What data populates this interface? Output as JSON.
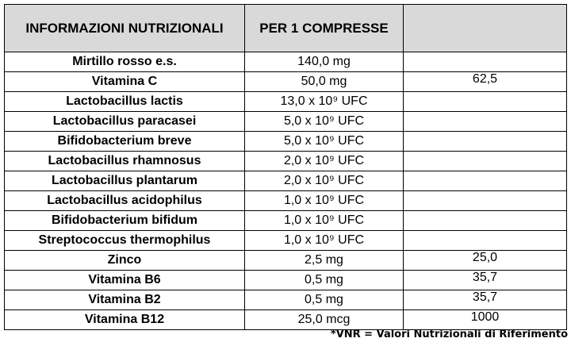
{
  "table": {
    "header": [
      "INFORMAZIONI NUTRIZIONALI",
      "PER 1 COMPRESSE",
      null
    ],
    "rows": [
      [
        "Mirtillo rosso e.s.",
        "140,0 mg",
        null
      ],
      [
        "Vitamina C",
        "50,0 mg",
        "62,5"
      ],
      [
        "Lactobacillus lactis",
        "13,0 x 10⁹ UFC",
        null
      ],
      [
        "Lactobacillus paracasei",
        "5,0 x 10⁹ UFC",
        null
      ],
      [
        "Bifidobacterium breve",
        "5,0 x 10⁹ UFC",
        null
      ],
      [
        "Lactobacillus rhamnosus",
        "2,0 x 10⁹ UFC",
        null
      ],
      [
        "Lactobacillus plantarum",
        "2,0 x 10⁹ UFC",
        null
      ],
      [
        "Lactobacillus acidophilus",
        "1,0 x 10⁹ UFC",
        null
      ],
      [
        "Bifidobacterium bifidum",
        "1,0 x 10⁹ UFC",
        null
      ],
      [
        "Streptococcus thermophilus",
        "1,0 x 10⁹ UFC",
        null
      ],
      [
        "Zinco",
        "2,5 mg",
        "25,0"
      ],
      [
        "Vitamina B6",
        "0,5 mg",
        "35,7"
      ],
      [
        "Vitamina B2",
        "0,5 mg",
        "35,7"
      ],
      [
        "Vitamina B12",
        "25,0 mcg",
        "1000"
      ]
    ],
    "footnote": "*VNR = Valori Nutrizionali di Riferimento"
  }
}
